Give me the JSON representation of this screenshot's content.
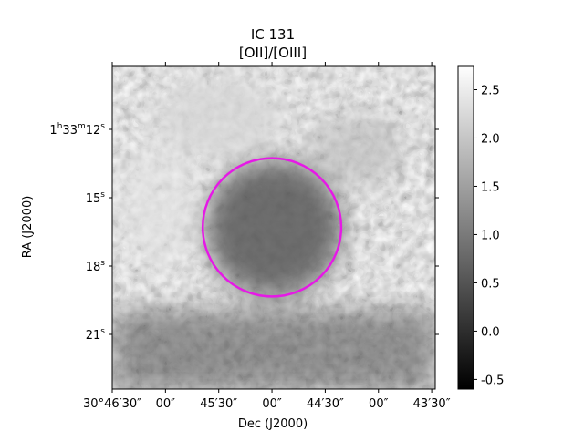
{
  "chart_data": {
    "type": "heatmap",
    "title": "IC 131",
    "subtitle": "[OII]/[OIII]",
    "xlabel": "Dec (J2000)",
    "ylabel": "RA (J2000)",
    "x_ticks": [
      {
        "label": "30°46′30″",
        "value": 1800
      },
      {
        "label": "00″",
        "value": 1770
      },
      {
        "label": "45′30″",
        "value": 1740
      },
      {
        "label": "00″",
        "value": 1710
      },
      {
        "label": "44′30″",
        "value": 1680
      },
      {
        "label": "00″",
        "value": 1650
      },
      {
        "label": "43′30″",
        "value": 1620
      }
    ],
    "x_range": [
      1800,
      1618
    ],
    "y_ticks": [
      {
        "hour": "1",
        "min": "33",
        "sec": "12",
        "value": 12
      },
      {
        "sec": "15",
        "value": 15
      },
      {
        "sec": "18",
        "value": 18
      },
      {
        "sec": "21",
        "value": 21
      }
    ],
    "y_range": [
      9.2,
      23.4
    ],
    "colorbar": {
      "colormap": "gray",
      "min": -0.6,
      "max": 2.75,
      "ticks": [
        "-0.5",
        "0.0",
        "0.5",
        "1.0",
        "1.5",
        "2.0",
        "2.5"
      ],
      "tick_values": [
        -0.5,
        0.0,
        0.5,
        1.0,
        1.5,
        2.0,
        2.5
      ]
    },
    "overlay_circle": {
      "color": "#e619e6",
      "center_dec": 1710,
      "center_ra": 16.3,
      "radius_arcsec": 39
    },
    "grid": false
  }
}
